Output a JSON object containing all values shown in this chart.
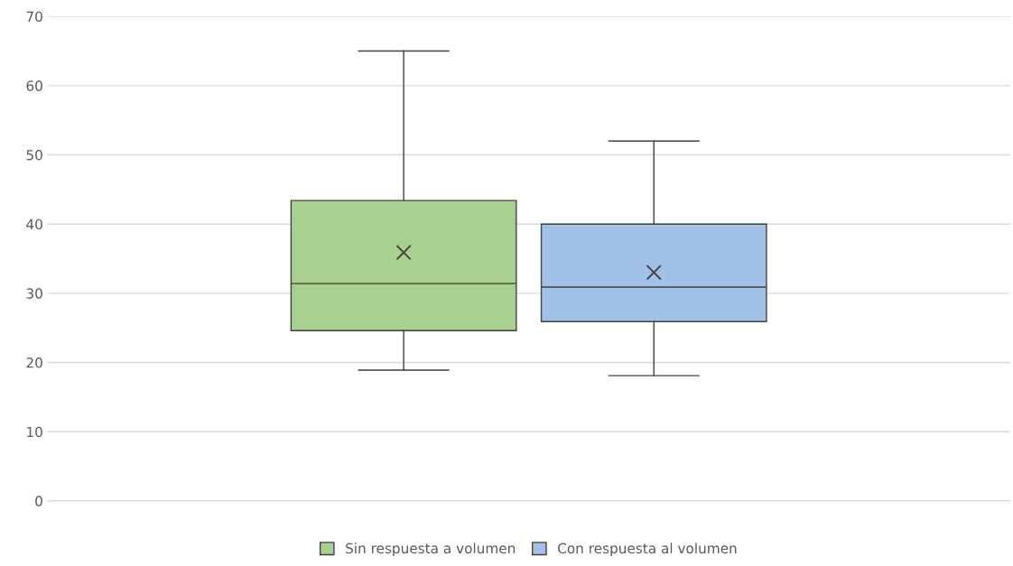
{
  "chart_data": {
    "type": "box",
    "categories": [
      null
    ],
    "series": [
      {
        "name": "Sin respuesta a volumen",
        "color": "#a9d08e",
        "boxes": [
          {
            "low": 18.9,
            "q1": 24.6,
            "median": 31.4,
            "q3": 43.4,
            "high": 65,
            "mean": 35.9
          }
        ]
      },
      {
        "name": "Con respuesta al volumen",
        "color": "#a2c1e8",
        "boxes": [
          {
            "low": 18.1,
            "q1": 25.9,
            "median": 30.9,
            "q3": 40.0,
            "high": 52,
            "mean": 33.0
          }
        ]
      }
    ],
    "ylim": [
      0,
      70
    ],
    "yticks": [
      0,
      10,
      20,
      30,
      40,
      50,
      60,
      70
    ],
    "grid": "y",
    "legend": "bottom",
    "tick_labels": "y"
  }
}
